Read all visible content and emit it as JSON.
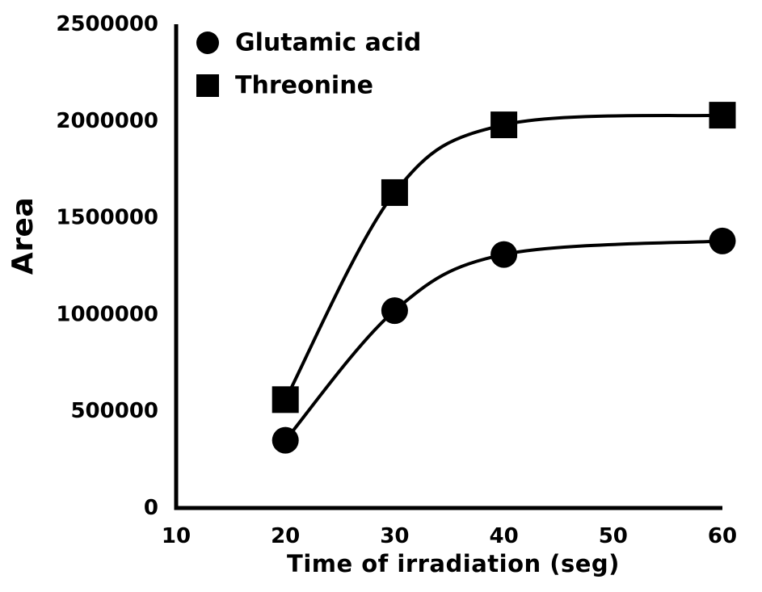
{
  "page": {
    "background_color": "#ffffff",
    "foreground_color": "#000000"
  },
  "chart_data": {
    "type": "line",
    "title": "",
    "x": [
      20,
      30,
      40,
      60
    ],
    "series": [
      {
        "name": "Glutamic acid",
        "marker": "circle",
        "values": [
          350000,
          1020000,
          1310000,
          1380000
        ]
      },
      {
        "name": "Threonine",
        "marker": "square",
        "values": [
          560000,
          1630000,
          1980000,
          2030000
        ]
      }
    ],
    "xlabel": "Time of irradiation (seg)",
    "ylabel": "Area",
    "x_ticks": [
      10,
      20,
      30,
      40,
      50,
      60
    ],
    "y_ticks": [
      0,
      500000,
      1000000,
      1500000,
      2000000,
      2500000
    ],
    "xlim": [
      10,
      60
    ],
    "ylim": [
      0,
      2500000
    ],
    "grid": false,
    "smooth_lines": true,
    "legend_position": "top-left-inside",
    "line_color": "#000000",
    "marker_color": "#000000"
  }
}
